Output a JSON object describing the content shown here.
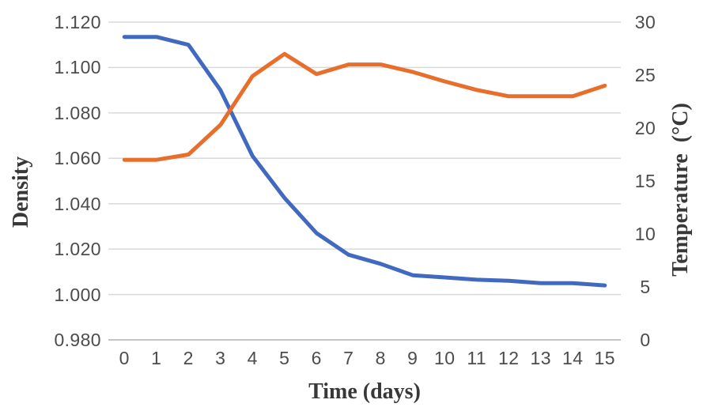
{
  "chart_data": {
    "type": "line",
    "title": "",
    "xlabel": "Time (days)",
    "ylabel_left": "Density",
    "ylabel_right": "Temperature  (°C)",
    "categories": [
      "0",
      "1",
      "2",
      "3",
      "4",
      "5",
      "6",
      "7",
      "8",
      "9",
      "10",
      "11",
      "12",
      "13",
      "14",
      "15"
    ],
    "series": [
      {
        "name": "Density",
        "axis": "left",
        "color": "#4169c0",
        "values": [
          1.1135,
          1.1135,
          1.11,
          1.09,
          1.061,
          1.0425,
          1.027,
          1.0175,
          1.0135,
          1.0085,
          1.0075,
          1.0065,
          1.006,
          1.005,
          1.005,
          1.004
        ]
      },
      {
        "name": "Temperature",
        "axis": "right",
        "color": "#e76f2b",
        "values": [
          17,
          17,
          17.5,
          20.3,
          24.9,
          27,
          25.1,
          26,
          26,
          25.3,
          24.4,
          23.6,
          23,
          23,
          23,
          24
        ]
      }
    ],
    "left_axis": {
      "min": 0.98,
      "max": 1.12,
      "step": 0.02,
      "tick_labels": [
        "1.120",
        "1.100",
        "1.080",
        "1.060",
        "1.040",
        "1.020",
        "1.000",
        "0.980"
      ]
    },
    "right_axis": {
      "min": 0,
      "max": 30,
      "step": 5,
      "tick_labels": [
        "30",
        "25",
        "20",
        "15",
        "10",
        "5",
        "0"
      ]
    },
    "grid": "horizontal",
    "legend": "none",
    "colors": {
      "gridline": "#d9d9d9",
      "axis_line": "#c4c4c4",
      "tick_text": "#4c4c4c",
      "title_text": "#383838",
      "background": "#ffffff"
    }
  }
}
